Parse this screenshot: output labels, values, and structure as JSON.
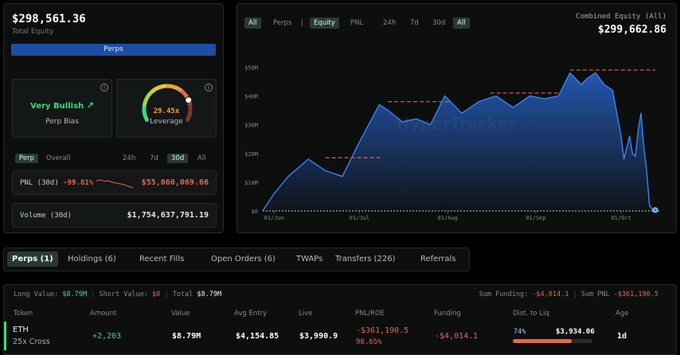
{
  "summary": {
    "total_value": "$298,561.36",
    "total_label": "Total Equity",
    "mode": "Perps",
    "bias_value": "Very Bullish",
    "bias_label": "Perp Bias",
    "leverage_value": "29.45x",
    "leverage_label": "Leverage",
    "leverage_gauge_fraction": 0.78,
    "scope_tabs": [
      "Perp",
      "Overall"
    ],
    "scope_active": 0,
    "range_tabs": [
      "24h",
      "7d",
      "30d",
      "All"
    ],
    "range_active": 2,
    "pnl_label": "PNL (30d)",
    "pnl_pct": "-99.81%",
    "pnl_value": "$55,060,069.66",
    "volume_label": "Volume (30d)",
    "volume_value": "$1,754,637,791.19"
  },
  "chart_controls": {
    "group1": [
      "All",
      "Perps"
    ],
    "group1_active": 0,
    "separator": "|",
    "group2": [
      "Equity",
      "PNL"
    ],
    "group2_active": 0,
    "ranges": [
      "24h",
      "7d",
      "30d",
      "All"
    ],
    "range_active": 3,
    "equity_label": "Combined Equity (All)",
    "equity_value": "$299,662.86",
    "watermark": "HyperTracker"
  },
  "chart_data": {
    "type": "area",
    "title": "",
    "xlabel": "",
    "ylabel": "",
    "y_ticks": [
      "$0",
      "$10M",
      "$20M",
      "$30M",
      "$40M",
      "$50M"
    ],
    "ylim": [
      0,
      50
    ],
    "x_ticks": [
      "01/Jun",
      "01/Jul",
      "01/Aug",
      "01/Sep",
      "01/Oct"
    ],
    "x_tick_days": [
      0,
      30,
      61,
      92,
      122
    ],
    "xlim": [
      -4,
      136
    ],
    "x": [
      -4,
      0,
      5,
      12,
      18,
      24,
      30,
      37,
      40,
      45,
      50,
      55,
      60,
      66,
      72,
      78,
      84,
      90,
      95,
      100,
      104,
      108,
      110,
      113,
      116,
      119,
      122,
      123,
      124,
      125,
      126,
      127,
      128,
      129,
      130,
      131,
      132,
      133,
      134
    ],
    "y": [
      0,
      6,
      12,
      18,
      14,
      12,
      24,
      37,
      35,
      31,
      32,
      30,
      40,
      34,
      38,
      40,
      36,
      40,
      39,
      40,
      48,
      44,
      46,
      48,
      44,
      42,
      26,
      18,
      22,
      26,
      20,
      19,
      28,
      34,
      22,
      14,
      2,
      0.5,
      0.3
    ],
    "series_color": "#2b6ee0",
    "reference_levels": [
      {
        "x_start": 18,
        "x_end": 38,
        "y": 18.5
      },
      {
        "x_start": 40,
        "x_end": 62,
        "y": 38
      },
      {
        "x_start": 76,
        "x_end": 100,
        "y": 41
      },
      {
        "x_start": 104,
        "x_end": 134,
        "y": 49
      }
    ],
    "reference_color": "#e0533a"
  },
  "tabs": {
    "items": [
      "Perps (1)",
      "Holdings (6)",
      "Recent Fills",
      "Open Orders (6)",
      "TWAPs",
      "Transfers (226)",
      "Referrals"
    ],
    "active": 0
  },
  "positions": {
    "long_label": "Long Value:",
    "long_value": "$8.79M",
    "short_label": "Short Value:",
    "short_value": "$0",
    "total_label": "Total",
    "total_value": "$8.79M",
    "funding_label": "Sum Funding:",
    "funding_value": "-$4,014.1",
    "sum_pnl_label": "Sum PNL",
    "sum_pnl_value": "-$361,190.5",
    "headers": [
      "Token",
      "Amount",
      "Value",
      "Avg Entry",
      "Live",
      "PNL/ROE",
      "Funding",
      "Dist. to Liq",
      "Age"
    ],
    "row": {
      "token": "ETH",
      "margin": "25x Cross",
      "amount": "+2,203",
      "value": "$8.79M",
      "avg_entry": "$4,154.85",
      "live": "$3,990.9",
      "pnl": "-$361,190.5",
      "roe": "98.65%",
      "funding": "-$4,014.1",
      "liq_pct": "74%",
      "liq_fraction": 0.74,
      "liq_price": "$3,934.06",
      "age": "1d"
    }
  }
}
